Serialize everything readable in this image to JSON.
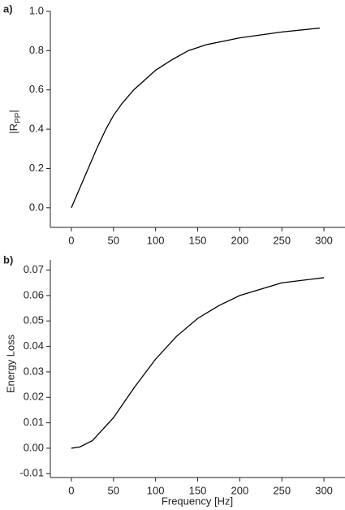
{
  "chart_data": [
    {
      "type": "line",
      "panel_label": "a)",
      "ylabel_parts": [
        "|R",
        "PP",
        "|"
      ],
      "x": [
        0,
        10,
        20,
        30,
        41,
        50,
        60,
        74,
        100,
        120,
        139,
        160,
        200,
        250,
        295
      ],
      "values": [
        0,
        0.1,
        0.2,
        0.3,
        0.4,
        0.47,
        0.53,
        0.6,
        0.7,
        0.755,
        0.8,
        0.83,
        0.865,
        0.895,
        0.915
      ],
      "color": "#000000",
      "xlim": [
        -25,
        325
      ],
      "xticks": [
        0,
        50,
        100,
        150,
        200,
        250,
        300
      ],
      "ylim": [
        -0.1,
        1.0
      ],
      "yticks": [
        {
          "value": 0,
          "label": "0.0"
        },
        0.2,
        0.4,
        0.6,
        0.8,
        {
          "value": 1,
          "label": "1.0"
        }
      ]
    },
    {
      "type": "line",
      "panel_label": "b)",
      "ylabel": "Energy Loss",
      "xlabel": "Frequency [Hz]",
      "x": [
        0,
        10,
        25,
        50,
        75,
        100,
        125,
        150,
        175,
        200,
        250,
        300
      ],
      "values": [
        0,
        0.0005,
        0.003,
        0.012,
        0.024,
        0.035,
        0.044,
        0.051,
        0.056,
        0.06,
        0.065,
        0.067
      ],
      "color": "#000000",
      "xlim": [
        -25,
        325
      ],
      "xticks": [
        0,
        50,
        100,
        150,
        200,
        250,
        300
      ],
      "ylim": [
        -0.0115,
        0.074
      ],
      "yticks": [
        -0.01,
        {
          "value": 0,
          "label": "0.00"
        },
        0.01,
        0.02,
        0.03,
        0.04,
        0.05,
        0.06,
        0.07
      ]
    }
  ]
}
